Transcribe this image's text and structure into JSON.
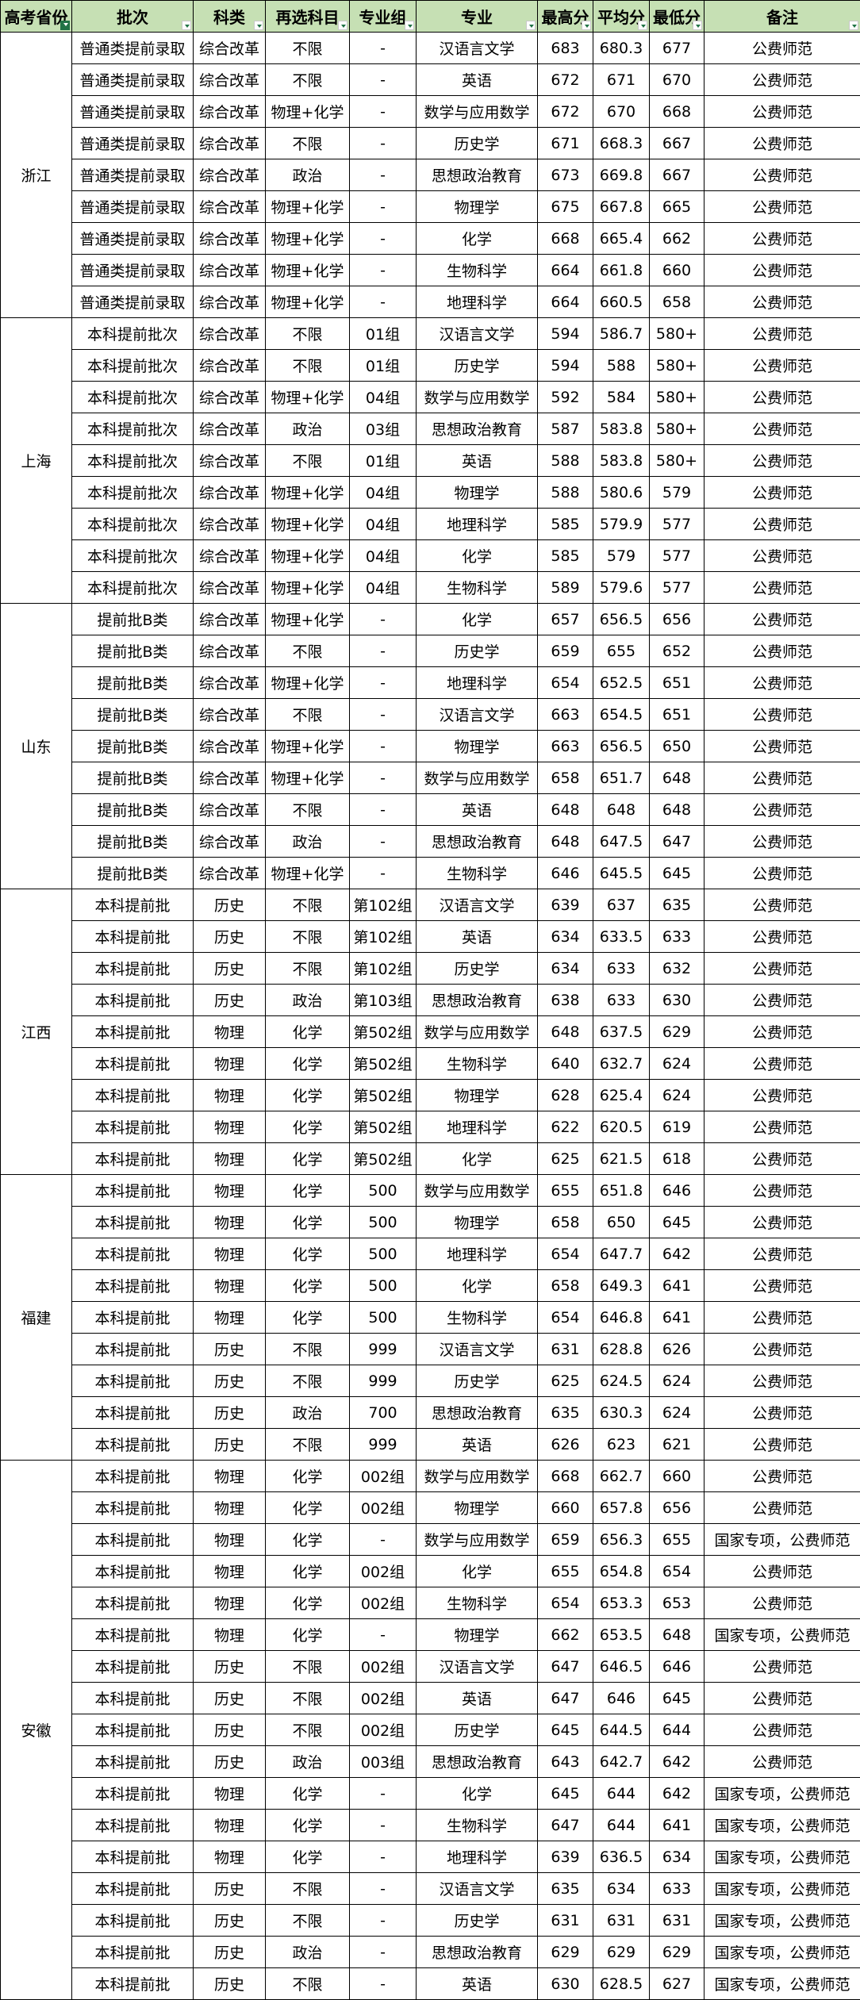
{
  "headers": [
    "高考省份",
    "批次",
    "科类",
    "再选科目",
    "专业组",
    "专业",
    "最高分",
    "平均分",
    "最低分",
    "备注"
  ],
  "filter_active_column": 0,
  "colors": {
    "header_bg": "#c6e0b4",
    "filter_accent": "#217346"
  },
  "groups": [
    {
      "province": "浙江",
      "rows": [
        [
          "普通类提前录取",
          "综合改革",
          "不限",
          "-",
          "汉语言文学",
          "683",
          "680.3",
          "677",
          "公费师范"
        ],
        [
          "普通类提前录取",
          "综合改革",
          "不限",
          "-",
          "英语",
          "672",
          "671",
          "670",
          "公费师范"
        ],
        [
          "普通类提前录取",
          "综合改革",
          "物理+化学",
          "-",
          "数学与应用数学",
          "672",
          "670",
          "668",
          "公费师范"
        ],
        [
          "普通类提前录取",
          "综合改革",
          "不限",
          "-",
          "历史学",
          "671",
          "668.3",
          "667",
          "公费师范"
        ],
        [
          "普通类提前录取",
          "综合改革",
          "政治",
          "-",
          "思想政治教育",
          "673",
          "669.8",
          "667",
          "公费师范"
        ],
        [
          "普通类提前录取",
          "综合改革",
          "物理+化学",
          "-",
          "物理学",
          "675",
          "667.8",
          "665",
          "公费师范"
        ],
        [
          "普通类提前录取",
          "综合改革",
          "物理+化学",
          "-",
          "化学",
          "668",
          "665.4",
          "662",
          "公费师范"
        ],
        [
          "普通类提前录取",
          "综合改革",
          "物理+化学",
          "-",
          "生物科学",
          "664",
          "661.8",
          "660",
          "公费师范"
        ],
        [
          "普通类提前录取",
          "综合改革",
          "物理+化学",
          "-",
          "地理科学",
          "664",
          "660.5",
          "658",
          "公费师范"
        ]
      ]
    },
    {
      "province": "上海",
      "rows": [
        [
          "本科提前批次",
          "综合改革",
          "不限",
          "01组",
          "汉语言文学",
          "594",
          "586.7",
          "580+",
          "公费师范"
        ],
        [
          "本科提前批次",
          "综合改革",
          "不限",
          "01组",
          "历史学",
          "594",
          "588",
          "580+",
          "公费师范"
        ],
        [
          "本科提前批次",
          "综合改革",
          "物理+化学",
          "04组",
          "数学与应用数学",
          "592",
          "584",
          "580+",
          "公费师范"
        ],
        [
          "本科提前批次",
          "综合改革",
          "政治",
          "03组",
          "思想政治教育",
          "587",
          "583.8",
          "580+",
          "公费师范"
        ],
        [
          "本科提前批次",
          "综合改革",
          "不限",
          "01组",
          "英语",
          "588",
          "583.8",
          "580+",
          "公费师范"
        ],
        [
          "本科提前批次",
          "综合改革",
          "物理+化学",
          "04组",
          "物理学",
          "588",
          "580.6",
          "579",
          "公费师范"
        ],
        [
          "本科提前批次",
          "综合改革",
          "物理+化学",
          "04组",
          "地理科学",
          "585",
          "579.9",
          "577",
          "公费师范"
        ],
        [
          "本科提前批次",
          "综合改革",
          "物理+化学",
          "04组",
          "化学",
          "585",
          "579",
          "577",
          "公费师范"
        ],
        [
          "本科提前批次",
          "综合改革",
          "物理+化学",
          "04组",
          "生物科学",
          "589",
          "579.6",
          "577",
          "公费师范"
        ]
      ]
    },
    {
      "province": "山东",
      "rows": [
        [
          "提前批B类",
          "综合改革",
          "物理+化学",
          "-",
          "化学",
          "657",
          "656.5",
          "656",
          "公费师范"
        ],
        [
          "提前批B类",
          "综合改革",
          "不限",
          "-",
          "历史学",
          "659",
          "655",
          "652",
          "公费师范"
        ],
        [
          "提前批B类",
          "综合改革",
          "物理+化学",
          "-",
          "地理科学",
          "654",
          "652.5",
          "651",
          "公费师范"
        ],
        [
          "提前批B类",
          "综合改革",
          "不限",
          "-",
          "汉语言文学",
          "663",
          "654.5",
          "651",
          "公费师范"
        ],
        [
          "提前批B类",
          "综合改革",
          "物理+化学",
          "-",
          "物理学",
          "663",
          "656.5",
          "650",
          "公费师范"
        ],
        [
          "提前批B类",
          "综合改革",
          "物理+化学",
          "-",
          "数学与应用数学",
          "658",
          "651.7",
          "648",
          "公费师范"
        ],
        [
          "提前批B类",
          "综合改革",
          "不限",
          "-",
          "英语",
          "648",
          "648",
          "648",
          "公费师范"
        ],
        [
          "提前批B类",
          "综合改革",
          "政治",
          "-",
          "思想政治教育",
          "648",
          "647.5",
          "647",
          "公费师范"
        ],
        [
          "提前批B类",
          "综合改革",
          "物理+化学",
          "-",
          "生物科学",
          "646",
          "645.5",
          "645",
          "公费师范"
        ]
      ]
    },
    {
      "province": "江西",
      "rows": [
        [
          "本科提前批",
          "历史",
          "不限",
          "第102组",
          "汉语言文学",
          "639",
          "637",
          "635",
          "公费师范"
        ],
        [
          "本科提前批",
          "历史",
          "不限",
          "第102组",
          "英语",
          "634",
          "633.5",
          "633",
          "公费师范"
        ],
        [
          "本科提前批",
          "历史",
          "不限",
          "第102组",
          "历史学",
          "634",
          "633",
          "632",
          "公费师范"
        ],
        [
          "本科提前批",
          "历史",
          "政治",
          "第103组",
          "思想政治教育",
          "638",
          "633",
          "630",
          "公费师范"
        ],
        [
          "本科提前批",
          "物理",
          "化学",
          "第502组",
          "数学与应用数学",
          "648",
          "637.5",
          "629",
          "公费师范"
        ],
        [
          "本科提前批",
          "物理",
          "化学",
          "第502组",
          "生物科学",
          "640",
          "632.7",
          "624",
          "公费师范"
        ],
        [
          "本科提前批",
          "物理",
          "化学",
          "第502组",
          "物理学",
          "628",
          "625.4",
          "624",
          "公费师范"
        ],
        [
          "本科提前批",
          "物理",
          "化学",
          "第502组",
          "地理科学",
          "622",
          "620.5",
          "619",
          "公费师范"
        ],
        [
          "本科提前批",
          "物理",
          "化学",
          "第502组",
          "化学",
          "625",
          "621.5",
          "618",
          "公费师范"
        ]
      ]
    },
    {
      "province": "福建",
      "rows": [
        [
          "本科提前批",
          "物理",
          "化学",
          "500",
          "数学与应用数学",
          "655",
          "651.8",
          "646",
          "公费师范"
        ],
        [
          "本科提前批",
          "物理",
          "化学",
          "500",
          "物理学",
          "658",
          "650",
          "645",
          "公费师范"
        ],
        [
          "本科提前批",
          "物理",
          "化学",
          "500",
          "地理科学",
          "654",
          "647.7",
          "642",
          "公费师范"
        ],
        [
          "本科提前批",
          "物理",
          "化学",
          "500",
          "化学",
          "658",
          "649.3",
          "641",
          "公费师范"
        ],
        [
          "本科提前批",
          "物理",
          "化学",
          "500",
          "生物科学",
          "654",
          "646.8",
          "641",
          "公费师范"
        ],
        [
          "本科提前批",
          "历史",
          "不限",
          "999",
          "汉语言文学",
          "631",
          "628.8",
          "626",
          "公费师范"
        ],
        [
          "本科提前批",
          "历史",
          "不限",
          "999",
          "历史学",
          "625",
          "624.5",
          "624",
          "公费师范"
        ],
        [
          "本科提前批",
          "历史",
          "政治",
          "700",
          "思想政治教育",
          "635",
          "630.3",
          "624",
          "公费师范"
        ],
        [
          "本科提前批",
          "历史",
          "不限",
          "999",
          "英语",
          "626",
          "623",
          "621",
          "公费师范"
        ]
      ]
    },
    {
      "province": "安徽",
      "rows": [
        [
          "本科提前批",
          "物理",
          "化学",
          "002组",
          "数学与应用数学",
          "668",
          "662.7",
          "660",
          "公费师范"
        ],
        [
          "本科提前批",
          "物理",
          "化学",
          "002组",
          "物理学",
          "660",
          "657.8",
          "656",
          "公费师范"
        ],
        [
          "本科提前批",
          "物理",
          "化学",
          "-",
          "数学与应用数学",
          "659",
          "656.3",
          "655",
          "国家专项，公费师范"
        ],
        [
          "本科提前批",
          "物理",
          "化学",
          "002组",
          "化学",
          "655",
          "654.8",
          "654",
          "公费师范"
        ],
        [
          "本科提前批",
          "物理",
          "化学",
          "002组",
          "生物科学",
          "654",
          "653.3",
          "653",
          "公费师范"
        ],
        [
          "本科提前批",
          "物理",
          "化学",
          "-",
          "物理学",
          "662",
          "653.5",
          "648",
          "国家专项，公费师范"
        ],
        [
          "本科提前批",
          "历史",
          "不限",
          "002组",
          "汉语言文学",
          "647",
          "646.5",
          "646",
          "公费师范"
        ],
        [
          "本科提前批",
          "历史",
          "不限",
          "002组",
          "英语",
          "647",
          "646",
          "645",
          "公费师范"
        ],
        [
          "本科提前批",
          "历史",
          "不限",
          "002组",
          "历史学",
          "645",
          "644.5",
          "644",
          "公费师范"
        ],
        [
          "本科提前批",
          "历史",
          "政治",
          "003组",
          "思想政治教育",
          "643",
          "642.7",
          "642",
          "公费师范"
        ],
        [
          "本科提前批",
          "物理",
          "化学",
          "-",
          "化学",
          "645",
          "644",
          "642",
          "国家专项，公费师范"
        ],
        [
          "本科提前批",
          "物理",
          "化学",
          "-",
          "生物科学",
          "647",
          "644",
          "641",
          "国家专项，公费师范"
        ],
        [
          "本科提前批",
          "物理",
          "化学",
          "-",
          "地理科学",
          "639",
          "636.5",
          "634",
          "国家专项，公费师范"
        ],
        [
          "本科提前批",
          "历史",
          "不限",
          "-",
          "汉语言文学",
          "635",
          "634",
          "633",
          "国家专项，公费师范"
        ],
        [
          "本科提前批",
          "历史",
          "不限",
          "-",
          "历史学",
          "631",
          "631",
          "631",
          "国家专项，公费师范"
        ],
        [
          "本科提前批",
          "历史",
          "政治",
          "-",
          "思想政治教育",
          "629",
          "629",
          "629",
          "国家专项，公费师范"
        ],
        [
          "本科提前批",
          "历史",
          "不限",
          "-",
          "英语",
          "630",
          "628.5",
          "627",
          "国家专项，公费师范"
        ]
      ]
    }
  ]
}
